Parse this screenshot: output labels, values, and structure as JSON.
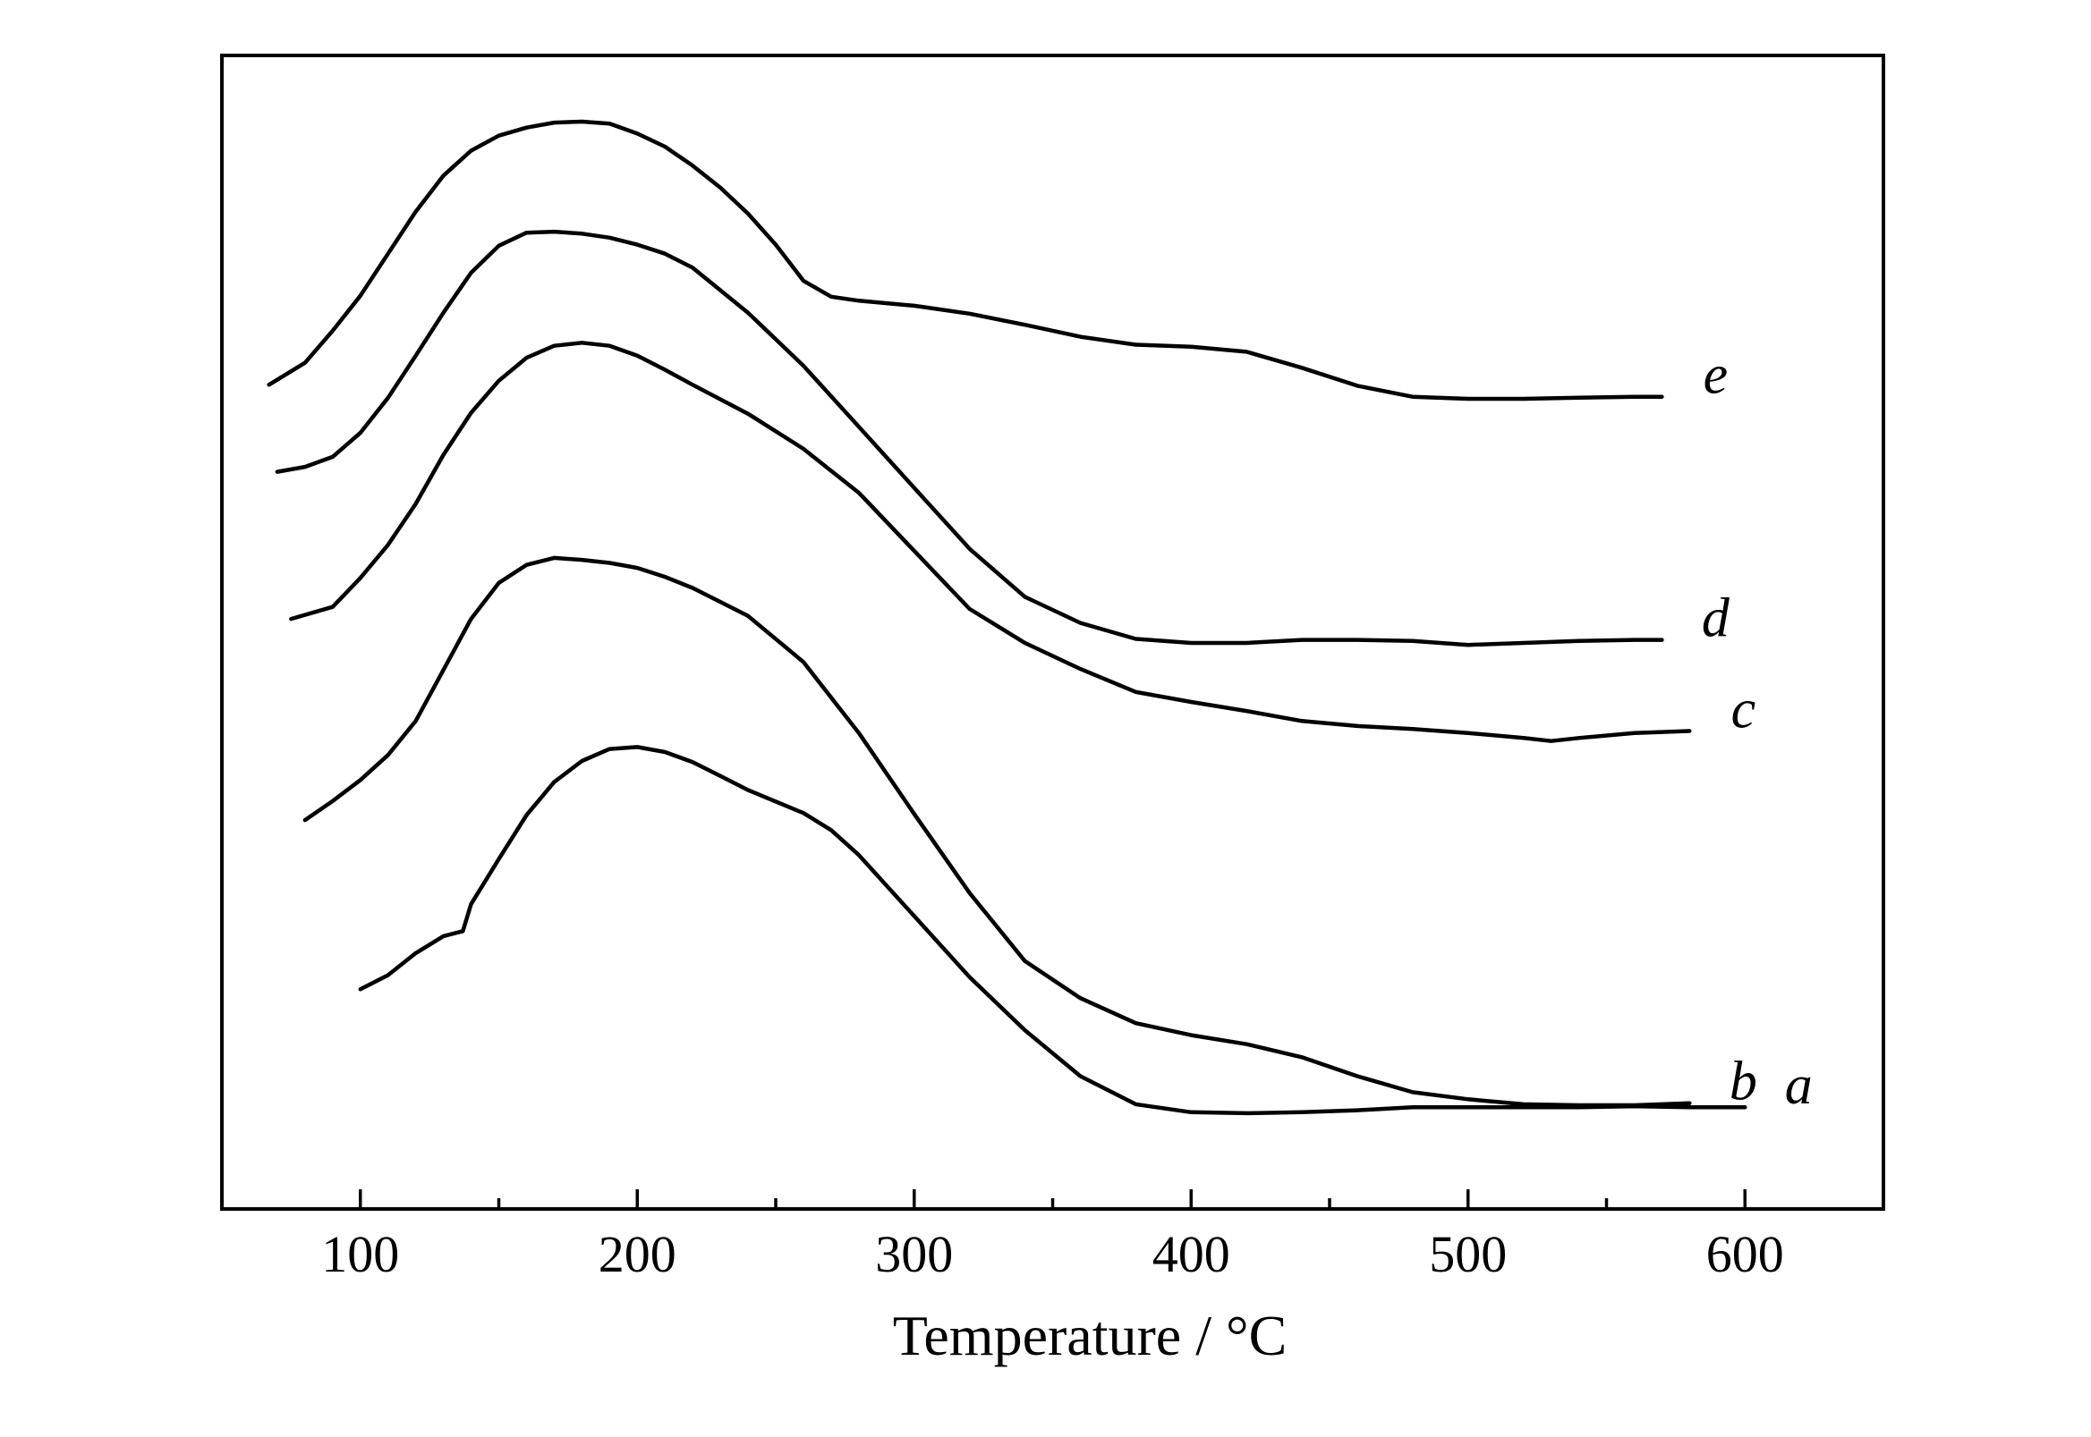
{
  "chart_data": {
    "type": "line",
    "title": "",
    "xlabel": "Temperature / °C",
    "ylabel": "",
    "xlim": [
      50,
      650
    ],
    "ylim": [
      0,
      100
    ],
    "x_ticks": [
      100,
      200,
      300,
      400,
      500,
      600
    ],
    "x_tick_labels": [
      "100",
      "200",
      "300",
      "400",
      "500",
      "600"
    ],
    "y_ticks_shown": false,
    "grid": false,
    "legend": "inline labels at right end of each curve",
    "series": [
      {
        "name": "a",
        "x": [
          100,
          110,
          120,
          130,
          137,
          140,
          150,
          160,
          170,
          180,
          190,
          200,
          210,
          220,
          230,
          240,
          260,
          270,
          280,
          300,
          320,
          340,
          360,
          380,
          400,
          420,
          440,
          460,
          480,
          500,
          520,
          540,
          560,
          580,
          600
        ],
        "y": [
          13.3,
          14.7,
          16.9,
          18.6,
          19.1,
          21.8,
          26.3,
          30.7,
          34.0,
          36.1,
          37.3,
          37.5,
          37.0,
          36.0,
          34.6,
          33.2,
          30.9,
          29.2,
          26.7,
          20.6,
          14.5,
          9.2,
          4.6,
          1.8,
          1.0,
          0.9,
          1.0,
          1.2,
          1.5,
          1.5,
          1.5,
          1.5,
          1.6,
          1.5,
          1.5
        ]
      },
      {
        "name": "b",
        "x": [
          80,
          90,
          100,
          110,
          120,
          130,
          140,
          150,
          160,
          170,
          180,
          190,
          200,
          210,
          220,
          240,
          260,
          280,
          300,
          320,
          340,
          360,
          380,
          400,
          420,
          440,
          460,
          480,
          500,
          520,
          540,
          560,
          580
        ],
        "y": [
          30.2,
          32.1,
          34.2,
          36.7,
          40.1,
          45.2,
          50.3,
          53.9,
          55.7,
          56.4,
          56.2,
          55.9,
          55.4,
          54.5,
          53.4,
          50.6,
          46.0,
          38.9,
          30.8,
          22.9,
          16.1,
          12.4,
          9.9,
          8.7,
          7.8,
          6.5,
          4.6,
          3.0,
          2.3,
          1.8,
          1.7,
          1.7,
          1.9
        ]
      },
      {
        "name": "c",
        "x": [
          75,
          90,
          100,
          110,
          120,
          130,
          140,
          150,
          160,
          170,
          180,
          190,
          200,
          210,
          220,
          240,
          260,
          280,
          300,
          320,
          340,
          360,
          380,
          400,
          420,
          440,
          460,
          480,
          500,
          520,
          530,
          540,
          560,
          580
        ],
        "y": [
          50.3,
          51.5,
          54.4,
          57.7,
          61.8,
          66.7,
          70.9,
          74.1,
          76.4,
          77.6,
          77.9,
          77.6,
          76.6,
          75.2,
          73.7,
          70.8,
          67.3,
          62.9,
          57.1,
          51.3,
          47.9,
          45.3,
          43.0,
          42.0,
          41.1,
          40.1,
          39.6,
          39.3,
          38.9,
          38.4,
          38.1,
          38.4,
          38.9,
          39.1
        ]
      },
      {
        "name": "d",
        "x": [
          70,
          80,
          90,
          100,
          110,
          120,
          130,
          140,
          150,
          160,
          170,
          180,
          190,
          200,
          210,
          220,
          240,
          260,
          280,
          300,
          320,
          340,
          360,
          380,
          400,
          420,
          440,
          460,
          480,
          500,
          520,
          540,
          560,
          570
        ],
        "y": [
          65.0,
          65.5,
          66.5,
          68.9,
          72.4,
          76.6,
          80.9,
          84.9,
          87.6,
          88.9,
          89.0,
          88.8,
          88.4,
          87.7,
          86.8,
          85.4,
          80.9,
          75.6,
          69.5,
          63.4,
          57.3,
          52.5,
          49.9,
          48.3,
          47.9,
          47.9,
          48.2,
          48.2,
          48.1,
          47.7,
          47.9,
          48.1,
          48.2,
          48.2
        ]
      },
      {
        "name": "e",
        "x": [
          67,
          80,
          90,
          100,
          110,
          120,
          130,
          140,
          150,
          160,
          170,
          180,
          190,
          200,
          210,
          220,
          230,
          240,
          250,
          260,
          270,
          280,
          300,
          320,
          340,
          360,
          380,
          400,
          420,
          440,
          460,
          480,
          500,
          520,
          540,
          560,
          570
        ],
        "y": [
          73.7,
          75.9,
          79.1,
          82.6,
          86.8,
          91.0,
          94.6,
          97.1,
          98.6,
          99.4,
          99.9,
          100.0,
          99.8,
          98.8,
          97.5,
          95.6,
          93.4,
          90.8,
          87.7,
          84.1,
          82.5,
          82.1,
          81.6,
          80.8,
          79.7,
          78.5,
          77.7,
          77.5,
          77.0,
          75.4,
          73.6,
          72.5,
          72.3,
          72.3,
          72.4,
          72.5,
          72.5
        ]
      }
    ]
  }
}
